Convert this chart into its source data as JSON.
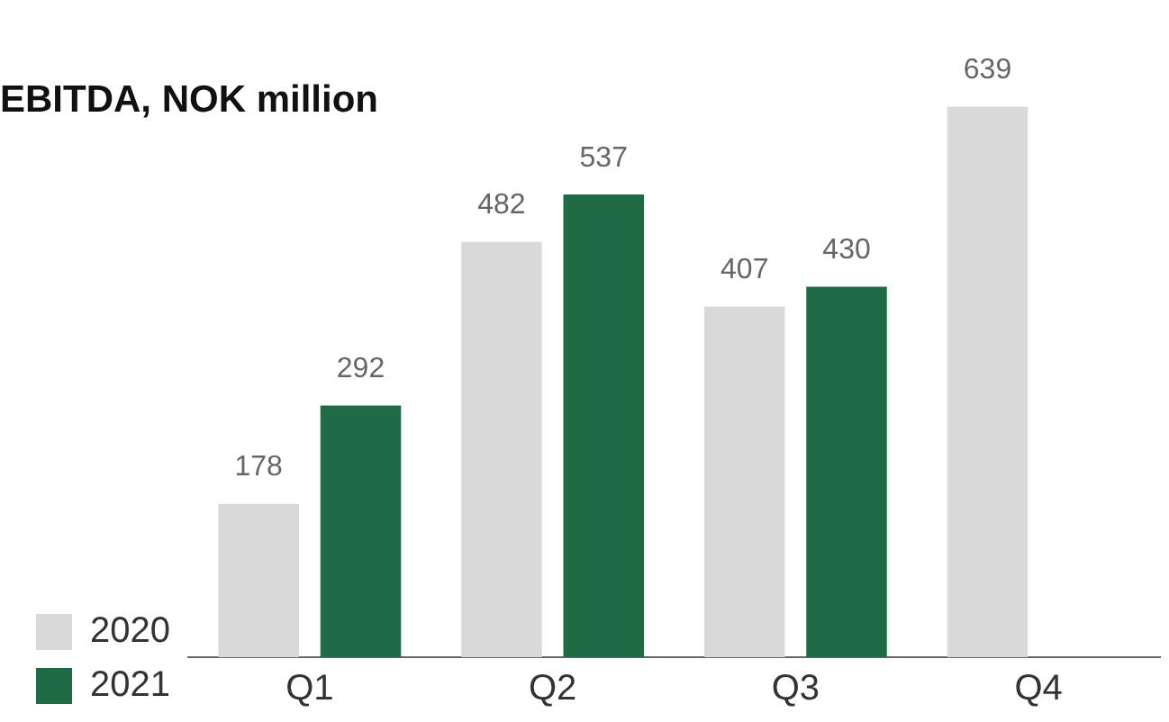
{
  "chart_data": {
    "type": "bar",
    "title": "EBITDA, NOK million",
    "categories": [
      "Q1",
      "Q2",
      "Q3",
      "Q4"
    ],
    "series": [
      {
        "name": "2020",
        "color": "#d9d9d9",
        "values": [
          178,
          482,
          407,
          639
        ]
      },
      {
        "name": "2021",
        "color": "#1f6b45",
        "values": [
          292,
          537,
          430,
          null
        ]
      }
    ],
    "data_labels": true,
    "grid": false,
    "legend": "bottom left",
    "tick_labels": "x"
  }
}
